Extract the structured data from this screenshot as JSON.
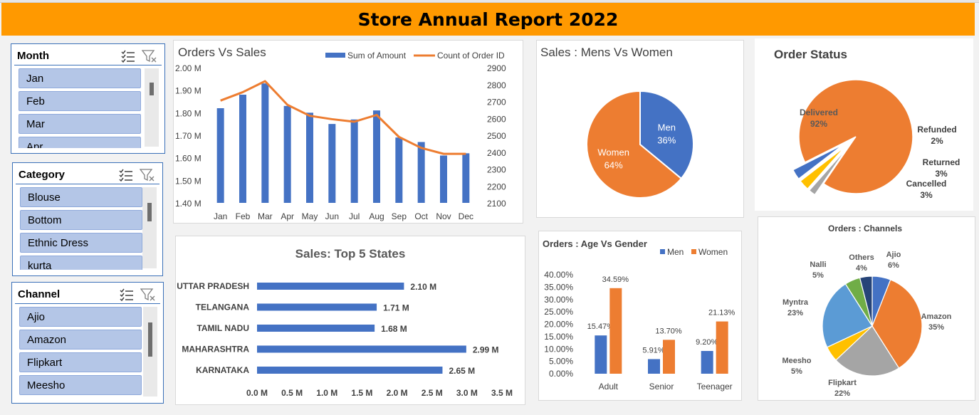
{
  "report_title": "Store Annual Report 2022",
  "slicers": [
    {
      "title": "Month",
      "items": [
        "Jan",
        "Feb",
        "Mar",
        "Apr"
      ]
    },
    {
      "title": "Category",
      "items": [
        "Blouse",
        "Bottom",
        "Ethnic Dress",
        "kurta"
      ]
    },
    {
      "title": "Channel",
      "items": [
        "Ajio",
        "Amazon",
        "Flipkart",
        "Meesho"
      ]
    }
  ],
  "colors": {
    "blue": "#4472c4",
    "orange": "#ed7d31",
    "gray": "#a5a5a5",
    "yellow": "#ffc000",
    "lightblue": "#5b9bd5",
    "green": "#70ad47",
    "navy": "#264478",
    "banner": "#ff9900"
  },
  "chart_data": [
    {
      "id": "orders_vs_sales",
      "type": "bar",
      "title": "Orders Vs Sales",
      "categories": [
        "Jan",
        "Feb",
        "Mar",
        "Apr",
        "May",
        "Jun",
        "Jul",
        "Aug",
        "Sep",
        "Oct",
        "Nov",
        "Dec"
      ],
      "series": [
        {
          "name": "Sum of Amount",
          "type": "bar",
          "axis": "left",
          "values": [
            1.82,
            1.88,
            1.93,
            1.83,
            1.8,
            1.75,
            1.77,
            1.81,
            1.69,
            1.67,
            1.61,
            1.62
          ]
        },
        {
          "name": "Count of Order ID",
          "type": "line",
          "axis": "right",
          "values": [
            2705,
            2755,
            2820,
            2680,
            2615,
            2595,
            2580,
            2620,
            2490,
            2425,
            2390,
            2390
          ]
        }
      ],
      "y_left": {
        "min": 1.4,
        "max": 2.0,
        "ticks": [
          "1.40 M",
          "1.50 M",
          "1.60 M",
          "1.70 M",
          "1.80 M",
          "1.90 M",
          "2.00 M"
        ]
      },
      "y_right": {
        "min": 2100,
        "max": 2900,
        "ticks": [
          "2100",
          "2200",
          "2300",
          "2400",
          "2500",
          "2600",
          "2700",
          "2800",
          "2900"
        ]
      }
    },
    {
      "id": "mens_vs_women",
      "type": "pie",
      "title": "Sales : Mens Vs Women",
      "slices": [
        {
          "label": "Men",
          "pct_label": "36%",
          "value": 36
        },
        {
          "label": "Women",
          "pct_label": "64%",
          "value": 64
        }
      ]
    },
    {
      "id": "order_status",
      "type": "pie",
      "title": "Order Status",
      "slices": [
        {
          "label": "Delivered",
          "pct_label": "92%",
          "value": 92
        },
        {
          "label": "Refunded",
          "pct_label": "2%",
          "value": 2
        },
        {
          "label": "Returned",
          "pct_label": "3%",
          "value": 3
        },
        {
          "label": "Cancelled",
          "pct_label": "3%",
          "value": 3
        }
      ]
    },
    {
      "id": "top5_states",
      "type": "bar",
      "orientation": "horizontal",
      "title": "Sales: Top 5 States",
      "categories": [
        "UTTAR PRADESH",
        "TELANGANA",
        "TAMIL NADU",
        "MAHARASHTRA",
        "KARNATAKA"
      ],
      "values": [
        2.1,
        1.71,
        1.68,
        2.99,
        2.65
      ],
      "value_labels": [
        "2.10 M",
        "1.71 M",
        "1.68 M",
        "2.99 M",
        "2.65 M"
      ],
      "xlim": [
        0,
        3.5
      ],
      "x_ticks": [
        "0.0 M",
        "0.5 M",
        "1.0 M",
        "1.5 M",
        "2.0 M",
        "2.5 M",
        "3.0 M",
        "3.5 M"
      ]
    },
    {
      "id": "age_vs_gender",
      "type": "bar",
      "title": "Orders : Age Vs Gender",
      "categories": [
        "Adult",
        "Senior",
        "Teenager"
      ],
      "series": [
        {
          "name": "Men",
          "values": [
            15.47,
            5.91,
            9.2
          ],
          "labels": [
            "15.47%",
            "5.91%",
            "9.20%"
          ]
        },
        {
          "name": "Women",
          "values": [
            34.59,
            13.7,
            21.13
          ],
          "labels": [
            "34.59%",
            "13.70%",
            "21.13%"
          ]
        }
      ],
      "ylim": [
        0,
        40
      ],
      "y_ticks": [
        "0.00%",
        "5.00%",
        "10.00%",
        "15.00%",
        "20.00%",
        "25.00%",
        "30.00%",
        "35.00%",
        "40.00%"
      ]
    },
    {
      "id": "channels",
      "type": "pie",
      "title": "Orders : Channels",
      "slices": [
        {
          "label": "Ajio",
          "pct_label": "6%",
          "value": 6
        },
        {
          "label": "Amazon",
          "pct_label": "35%",
          "value": 35
        },
        {
          "label": "Flipkart",
          "pct_label": "22%",
          "value": 22
        },
        {
          "label": "Meesho",
          "pct_label": "5%",
          "value": 5
        },
        {
          "label": "Myntra",
          "pct_label": "23%",
          "value": 23
        },
        {
          "label": "Nalli",
          "pct_label": "5%",
          "value": 5
        },
        {
          "label": "Others",
          "pct_label": "4%",
          "value": 4
        }
      ]
    }
  ]
}
